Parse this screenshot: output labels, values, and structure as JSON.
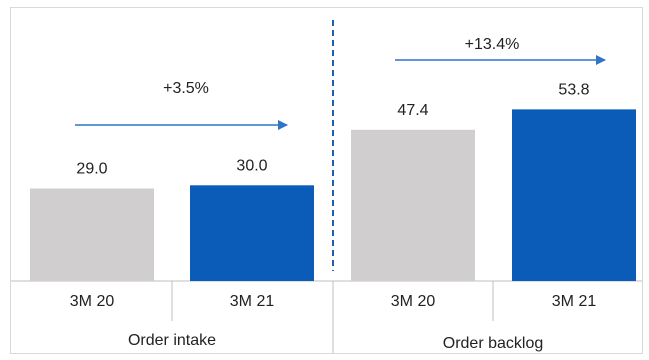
{
  "chart_data": {
    "type": "bar",
    "title": "",
    "ylabel": "",
    "ylim": [
      0,
      60
    ],
    "grid": false,
    "groups": [
      {
        "name": "Order intake",
        "categories": [
          "3M 20",
          "3M 21"
        ],
        "values": [
          29.0,
          30.0
        ],
        "value_labels": [
          "29.0",
          "30.0"
        ],
        "change": "+3.5%"
      },
      {
        "name": "Order backlog",
        "categories": [
          "3M 20",
          "3M 21"
        ],
        "values": [
          47.4,
          53.8
        ],
        "value_labels": [
          "47.4",
          "53.8"
        ],
        "change": "+13.4%"
      }
    ],
    "colors": {
      "prior_year": "#d0cece",
      "current_year": "#0b5cb8",
      "arrow": "#2e75c9",
      "divider": "#1f5fae",
      "axis": "#bfbfbf"
    }
  }
}
